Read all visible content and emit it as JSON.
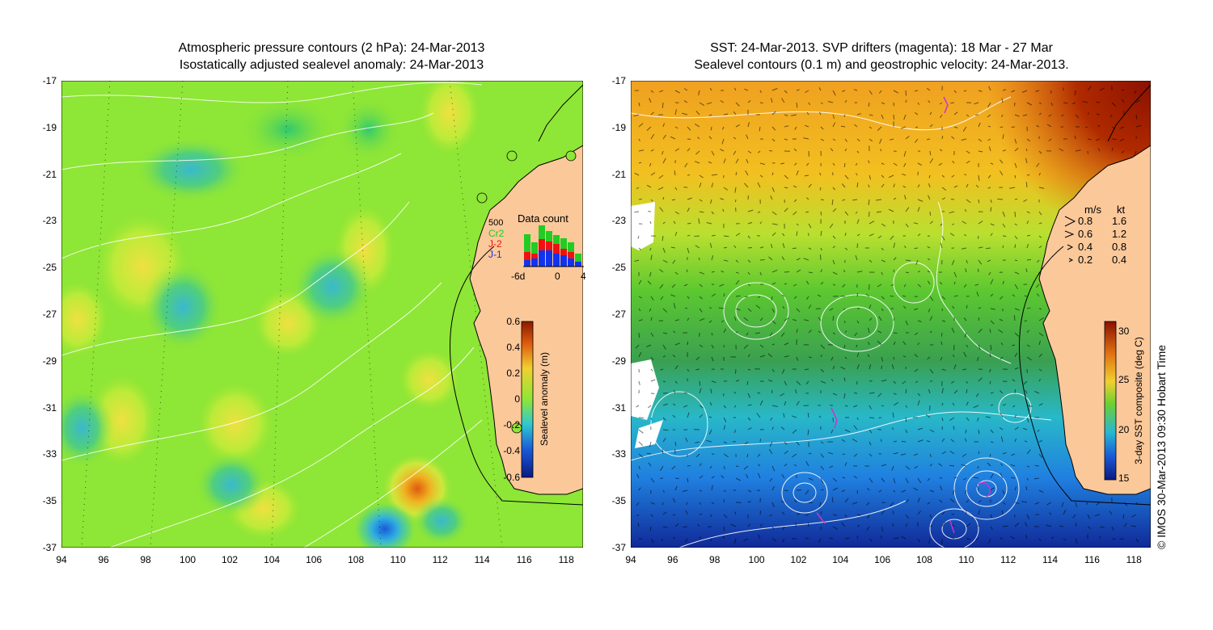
{
  "left_panel": {
    "title_line1": "Atmospheric pressure contours (2 hPa): 24-Mar-2013",
    "title_line2": "Isostatically adjusted sealevel anomaly: 24-Mar-2013",
    "colorbar": {
      "label": "Sealevel anomaly (m)",
      "ticks": [
        "0.6",
        "0.4",
        "0.2",
        "0",
        "-0.2",
        "-0.4",
        "-0.6"
      ]
    },
    "data_count": {
      "title": "Data count",
      "max_label": "500",
      "legend": [
        {
          "name": "Cr2",
          "color": "#22cc22"
        },
        {
          "name": "J-2",
          "color": "#ee1111"
        },
        {
          "name": "J-1",
          "color": "#1133ee"
        }
      ],
      "x_ticks": [
        "-6d",
        "0",
        "4"
      ]
    }
  },
  "right_panel": {
    "title_line1": "SST: 24-Mar-2013. SVP drifters (magenta): 18 Mar - 27 Mar",
    "title_line2": "Sealevel contours (0.1 m) and geostrophic velocity: 24-Mar-2013.",
    "speed_legend": {
      "header_ms": "m/s",
      "header_kt": "kt",
      "rows": [
        {
          "ms": "0.8",
          "kt": "1.6"
        },
        {
          "ms": "0.6",
          "kt": "1.2"
        },
        {
          "ms": "0.4",
          "kt": "0.8"
        },
        {
          "ms": "0.2",
          "kt": "0.4"
        }
      ]
    },
    "colorbar": {
      "label": "3-day SST composite (deg C)",
      "ticks": [
        "30",
        "25",
        "20",
        "15"
      ]
    }
  },
  "axes": {
    "lat_ticks": [
      "-17",
      "-19",
      "-21",
      "-23",
      "-25",
      "-27",
      "-29",
      "-31",
      "-33",
      "-35",
      "-37"
    ],
    "lon_ticks": [
      "94",
      "96",
      "98",
      "100",
      "102",
      "104",
      "106",
      "108",
      "110",
      "112",
      "114",
      "116",
      "118"
    ]
  },
  "copyright": "© IMOS 30-Mar-2013 09:30 Hobart Time",
  "colors": {
    "land": "#fbc89a",
    "sla_base": "#8ee636",
    "sst_warm": "#f0a020",
    "sst_cool": "#1a5ad8"
  }
}
